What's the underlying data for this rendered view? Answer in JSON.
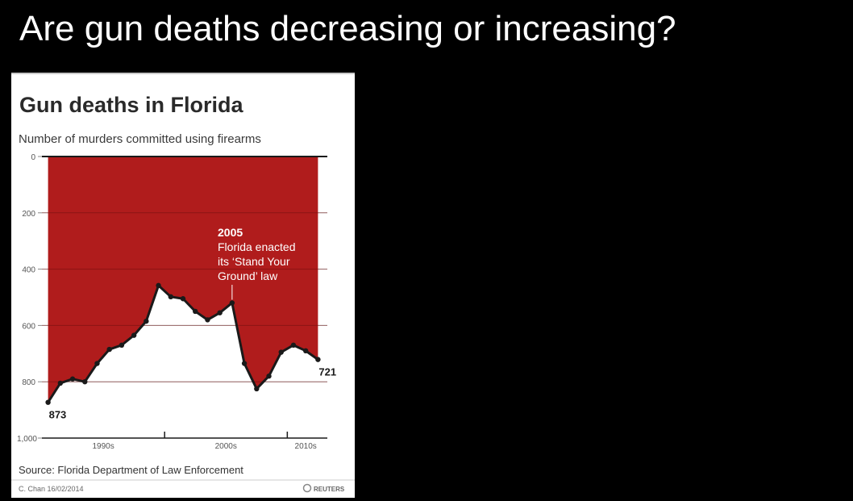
{
  "slide": {
    "title": "Are gun deaths decreasing or increasing?"
  },
  "footer": {
    "source": "Source: Florida Department of Law Enforcement",
    "credit": "C. Chan  16/02/2014",
    "brand": "REUTERS"
  },
  "annotation": {
    "year": "2005",
    "lines": [
      "Florida enacted",
      "its ‘Stand Your",
      "Ground’ law"
    ]
  },
  "chart_data": {
    "type": "area",
    "title": "Gun deaths in Florida",
    "subtitle": "Number of murders committed using firearms",
    "xlabel": "",
    "ylabel": "",
    "y_inverted": true,
    "ylim": [
      0,
      1000
    ],
    "yticks": [
      0,
      200,
      400,
      600,
      800,
      1000
    ],
    "ytick_labels": [
      "0",
      "200",
      "400",
      "600",
      "800",
      "1,000"
    ],
    "x_range": [
      1989.5,
      2012.5
    ],
    "x_ticks": [
      1999.5,
      2009.5
    ],
    "x_labels": [
      {
        "x": 1994.5,
        "label": "1990s"
      },
      {
        "x": 2004.5,
        "label": "2000s"
      },
      {
        "x": 2011,
        "label": "2010s"
      }
    ],
    "grid": true,
    "colors": {
      "fill": "#b01c1c",
      "line": "#1a1a1a",
      "grid": "#6e0f0f"
    },
    "series": [
      {
        "name": "Murders committed using firearms",
        "x": [
          1990,
          1991,
          1992,
          1993,
          1994,
          1995,
          1996,
          1997,
          1998,
          1999,
          2000,
          2001,
          2002,
          2003,
          2004,
          2005,
          2006,
          2007,
          2008,
          2009,
          2010,
          2011,
          2012
        ],
        "values": [
          873,
          805,
          790,
          800,
          735,
          685,
          670,
          635,
          585,
          458,
          498,
          505,
          550,
          580,
          555,
          520,
          735,
          825,
          780,
          695,
          670,
          690,
          721
        ]
      }
    ],
    "labels": [
      {
        "x": 1990,
        "text": "873"
      },
      {
        "x": 2012,
        "text": "721"
      }
    ]
  }
}
